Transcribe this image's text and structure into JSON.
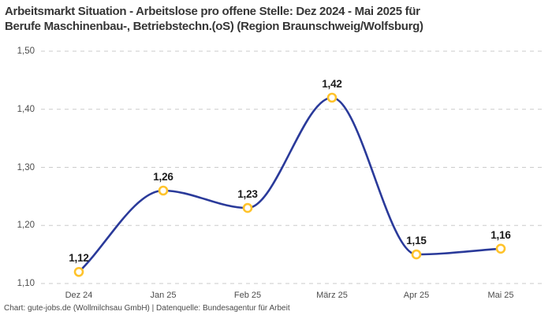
{
  "header": {
    "title_lines": [
      "Arbeitsmarkt Situation - Arbeitslose pro offene Stelle: Dez 2024 - Mai 2025 für",
      "Berufe Maschinenbau-, Betriebstechn.(oS) (Region Braunschweig/Wolfsburg)"
    ]
  },
  "chart_data": {
    "type": "line",
    "title": "Arbeitsmarkt Situation - Arbeitslose pro offene Stelle: Dez 2024 - Mai 2025 für Berufe Maschinenbau-, Betriebstechn.(oS) (Region Braunschweig/Wolfsburg)",
    "categories": [
      "Dez 24",
      "Jan 25",
      "Feb 25",
      "März 25",
      "Apr 25",
      "Mai 25"
    ],
    "series": [
      {
        "name": "Arbeitslose pro offene Stelle",
        "values": [
          1.12,
          1.26,
          1.23,
          1.42,
          1.15,
          1.16
        ]
      }
    ],
    "point_labels": [
      "1,12",
      "1,26",
      "1,23",
      "1,42",
      "1,15",
      "1,16"
    ],
    "yticks": {
      "values": [
        1.1,
        1.2,
        1.3,
        1.4,
        1.5
      ],
      "labels": [
        "1,10",
        "1,20",
        "1,30",
        "1,40",
        "1,50"
      ]
    },
    "ylim": [
      1.1,
      1.5
    ],
    "xlabel": "",
    "ylabel": "",
    "grid": "horizontal-dashed",
    "legend": "none",
    "interpolation": "monotone",
    "colors": {
      "line": "#2a3a9a",
      "marker_ring": "#ffc32b",
      "marker_fill": "#ffffff",
      "grid": "#cbcbcb",
      "title": "#363636",
      "tick": "#4d4d4d",
      "point_label": "#1a1a1a",
      "footer": "#4a4a4a",
      "background": "#ffffff"
    }
  },
  "footer": {
    "text": "Chart: gute-jobs.de (Wollmilchsau GmbH) | Datenquelle: Bundesagentur für Arbeit"
  }
}
